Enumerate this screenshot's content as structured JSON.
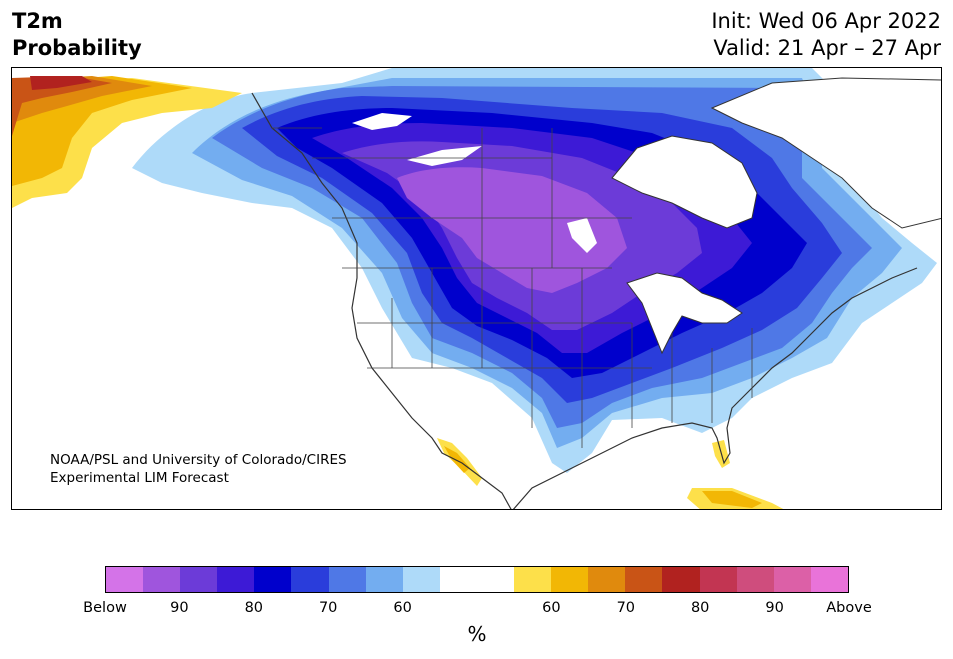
{
  "header": {
    "title_line1": "T2m",
    "title_line2": "Probability",
    "init_text": "Init: Wed 06 Apr 2022",
    "valid_text": "Valid: 21 Apr – 27 Apr"
  },
  "credit": {
    "line1": "NOAA/PSL and University of Colorado/CIRES",
    "line2": "Experimental LIM Forecast"
  },
  "colorbar": {
    "colors": [
      "#d473e8",
      "#9f55dd",
      "#6c3bd8",
      "#3d1ad6",
      "#0000cc",
      "#2a3ddb",
      "#4f78e6",
      "#73adf0",
      "#aedaf9",
      "#ffffff",
      "#ffffff",
      "#fde04a",
      "#f2b705",
      "#e08a0d",
      "#c95416",
      "#b1221f",
      "#c23552",
      "#cf4d7d",
      "#dc60a7",
      "#e973d9"
    ],
    "tick_labels": [
      "Below",
      "90",
      "80",
      "70",
      "60",
      "60",
      "70",
      "80",
      "90",
      "Above"
    ],
    "unit": "%"
  },
  "map_fill_colors": {
    "white": "#ffffff",
    "blue_60": "#aedaf9",
    "blue_70": "#73adf0",
    "blue_75": "#4f78e6",
    "blue_80": "#2a3ddb",
    "blue_85": "#0000cc",
    "purple_85": "#3d1ad6",
    "purple_90": "#6c3bd8",
    "purple_95": "#9f55dd",
    "yellow_60": "#fde04a",
    "orange_65": "#f2b705",
    "orange_70": "#e08a0d",
    "red_75": "#c95416",
    "red_80": "#b1221f"
  }
}
